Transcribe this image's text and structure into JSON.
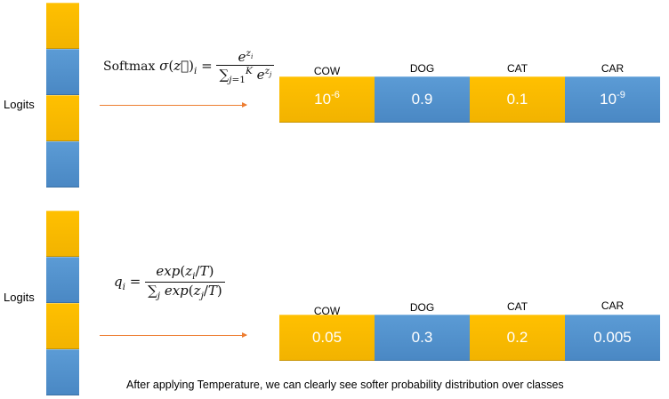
{
  "top": {
    "logits_label": "Logits",
    "formula_text": "Softmax σ(z⃗)ᵢ = e^{zᵢ} / Σⱼ₌₁ᴷ e^{zⱼ}",
    "classes": [
      "COW",
      "DOG",
      "CAT",
      "CAR"
    ],
    "probabilities": [
      {
        "base": "10",
        "exp": "-6"
      },
      {
        "base": "0.9",
        "exp": ""
      },
      {
        "base": "0.1",
        "exp": ""
      },
      {
        "base": "10",
        "exp": "-9"
      }
    ]
  },
  "bottom": {
    "logits_label": "Logits",
    "formula_text": "qᵢ = exp(zᵢ/T) / Σⱼ exp(zⱼ/T)",
    "classes": [
      "COW",
      "DOG",
      "CAT",
      "CAR"
    ],
    "probabilities": [
      "0.05",
      "0.3",
      "0.2",
      "0.005"
    ]
  },
  "caption": "After applying Temperature, we can clearly see softer probability distribution over classes",
  "colors": {
    "gold": "#ffc000",
    "blue": "#5b9bd5",
    "arrow": "#ed7d31"
  }
}
